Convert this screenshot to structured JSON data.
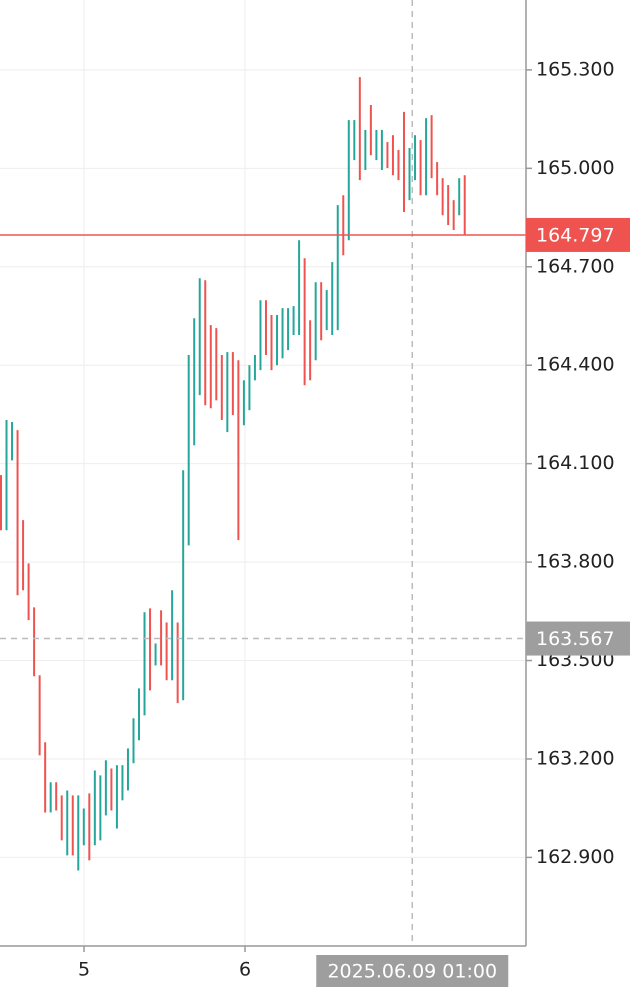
{
  "chart_data": {
    "type": "ohlc",
    "up_color": "#26a69a",
    "down_color": "#ef5350",
    "bar_colors": [
      "d",
      "u",
      "u",
      "d",
      "d",
      "d",
      "d",
      "d",
      "d",
      "u",
      "d",
      "d",
      "u",
      "d",
      "u",
      "u",
      "d",
      "u",
      "u",
      "u",
      "d",
      "u",
      "u",
      "u",
      "u",
      "u",
      "u",
      "d",
      "u",
      "d",
      "d",
      "u",
      "d",
      "u",
      "u",
      "u",
      "u",
      "d",
      "d",
      "d",
      "d",
      "u",
      "d",
      "d",
      "u",
      "u",
      "u",
      "u",
      "d",
      "d",
      "u",
      "u",
      "u",
      "u",
      "u",
      "d",
      "d",
      "u",
      "d",
      "u",
      "u",
      "u",
      "d",
      "u",
      "u",
      "d",
      "u",
      "d",
      "u",
      "u",
      "d",
      "d",
      "d",
      "d",
      "u",
      "u",
      "d",
      "u",
      "d",
      "d",
      "d",
      "d",
      "d",
      "u",
      "d"
    ],
    "high": [
      164.065,
      164.233,
      164.227,
      164.202,
      163.928,
      163.796,
      163.662,
      163.455,
      163.251,
      163.129,
      163.129,
      163.089,
      163.104,
      163.089,
      163.089,
      163.049,
      163.095,
      163.165,
      163.15,
      163.196,
      163.171,
      163.181,
      163.181,
      163.232,
      163.324,
      163.415,
      163.647,
      163.659,
      163.552,
      163.653,
      163.616,
      163.714,
      163.616,
      164.08,
      164.431,
      164.543,
      164.665,
      164.659,
      164.522,
      164.513,
      164.431,
      164.44,
      164.44,
      164.415,
      164.354,
      164.4,
      164.431,
      164.598,
      164.598,
      164.553,
      164.553,
      164.574,
      164.574,
      164.58,
      164.781,
      164.726,
      164.537,
      164.653,
      164.653,
      164.629,
      164.714,
      164.888,
      164.918,
      165.147,
      165.147,
      165.278,
      165.117,
      165.193,
      165.117,
      165.117,
      165.08,
      165.101,
      165.056,
      165.172,
      165.062,
      165.101,
      165.086,
      165.153,
      165.162,
      165.019,
      164.97,
      164.949,
      164.903,
      164.97,
      164.979
    ],
    "low": [
      163.897,
      163.897,
      164.11,
      163.699,
      163.714,
      163.623,
      163.452,
      163.211,
      163.037,
      163.037,
      163.043,
      162.952,
      162.906,
      162.906,
      162.86,
      162.937,
      162.891,
      162.937,
      162.952,
      163.028,
      163.043,
      162.988,
      163.074,
      163.104,
      163.187,
      163.257,
      163.333,
      163.409,
      163.485,
      163.485,
      163.44,
      163.44,
      163.37,
      163.379,
      163.851,
      164.156,
      164.309,
      164.278,
      164.269,
      164.293,
      164.233,
      164.196,
      164.248,
      163.867,
      164.217,
      164.263,
      164.354,
      164.385,
      164.431,
      164.385,
      164.4,
      164.421,
      164.446,
      164.492,
      164.492,
      164.339,
      164.354,
      164.415,
      164.476,
      164.507,
      164.492,
      164.507,
      164.735,
      164.781,
      165.025,
      164.964,
      164.995,
      165.04,
      165.025,
      164.995,
      165.001,
      164.979,
      164.964,
      164.867,
      164.903,
      164.964,
      164.918,
      164.918,
      164.97,
      164.918,
      164.857,
      164.827,
      164.812,
      164.857,
      164.797
    ],
    "xlim": [
      -0.18,
      95.1
    ],
    "xticks": [
      {
        "value": 15.04,
        "label": "5"
      },
      {
        "value": 44.2,
        "label": "6"
      }
    ],
    "ylim": [
      162.63,
      165.513
    ],
    "yticks": [
      {
        "value": 162.9,
        "label": "162.900"
      },
      {
        "value": 163.2,
        "label": "163.200"
      },
      {
        "value": 163.5,
        "label": "163.500"
      },
      {
        "value": 163.8,
        "label": "163.800"
      },
      {
        "value": 164.1,
        "label": "164.100"
      },
      {
        "value": 164.4,
        "label": "164.400"
      },
      {
        "value": 164.7,
        "label": "164.700"
      },
      {
        "value": 165.0,
        "label": "165.000"
      },
      {
        "value": 165.3,
        "label": "165.300"
      }
    ],
    "grid": true,
    "last_price": 164.797,
    "last_price_color": "#ef5350",
    "crosshair": {
      "x": 74.5,
      "y": 163.567,
      "x_label": "2025.06.09 01:00"
    }
  }
}
